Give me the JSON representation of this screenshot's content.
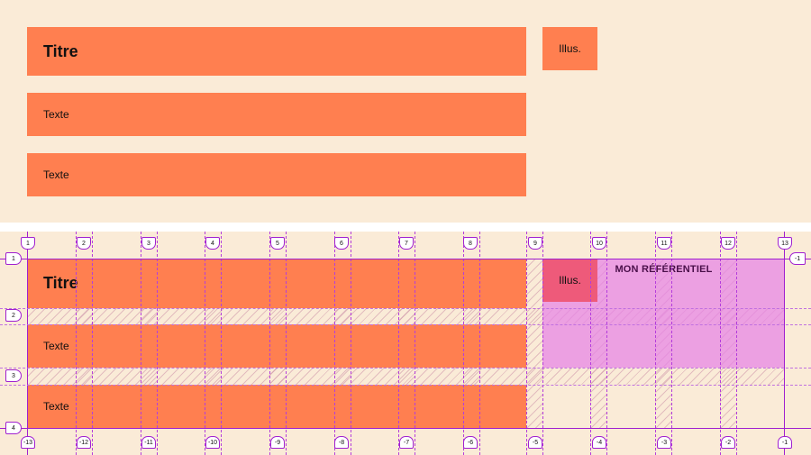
{
  "layout": {
    "title_label": "Titre",
    "illus_label": "Illus.",
    "text1_label": "Texte",
    "text2_label": "Texte"
  },
  "grid": {
    "area_label": "MON RÉFÉRENTIEL",
    "column_lines_top": [
      "1",
      "2",
      "3",
      "4",
      "5",
      "6",
      "7",
      "8",
      "9",
      "10",
      "11",
      "12",
      "13"
    ],
    "column_lines_bottom": [
      "-13",
      "-12",
      "-11",
      "-10",
      "-9",
      "-8",
      "-7",
      "-6",
      "-5",
      "-4",
      "-3",
      "-2",
      "-1"
    ],
    "row_lines_left": [
      "1",
      "2",
      "3",
      "4"
    ],
    "row_lines_right": [
      "-1"
    ]
  },
  "colors": {
    "background": "#faebd7",
    "block": "#ff7f50",
    "grid_line": "#a020d0",
    "area_highlight": "#e682e6"
  }
}
